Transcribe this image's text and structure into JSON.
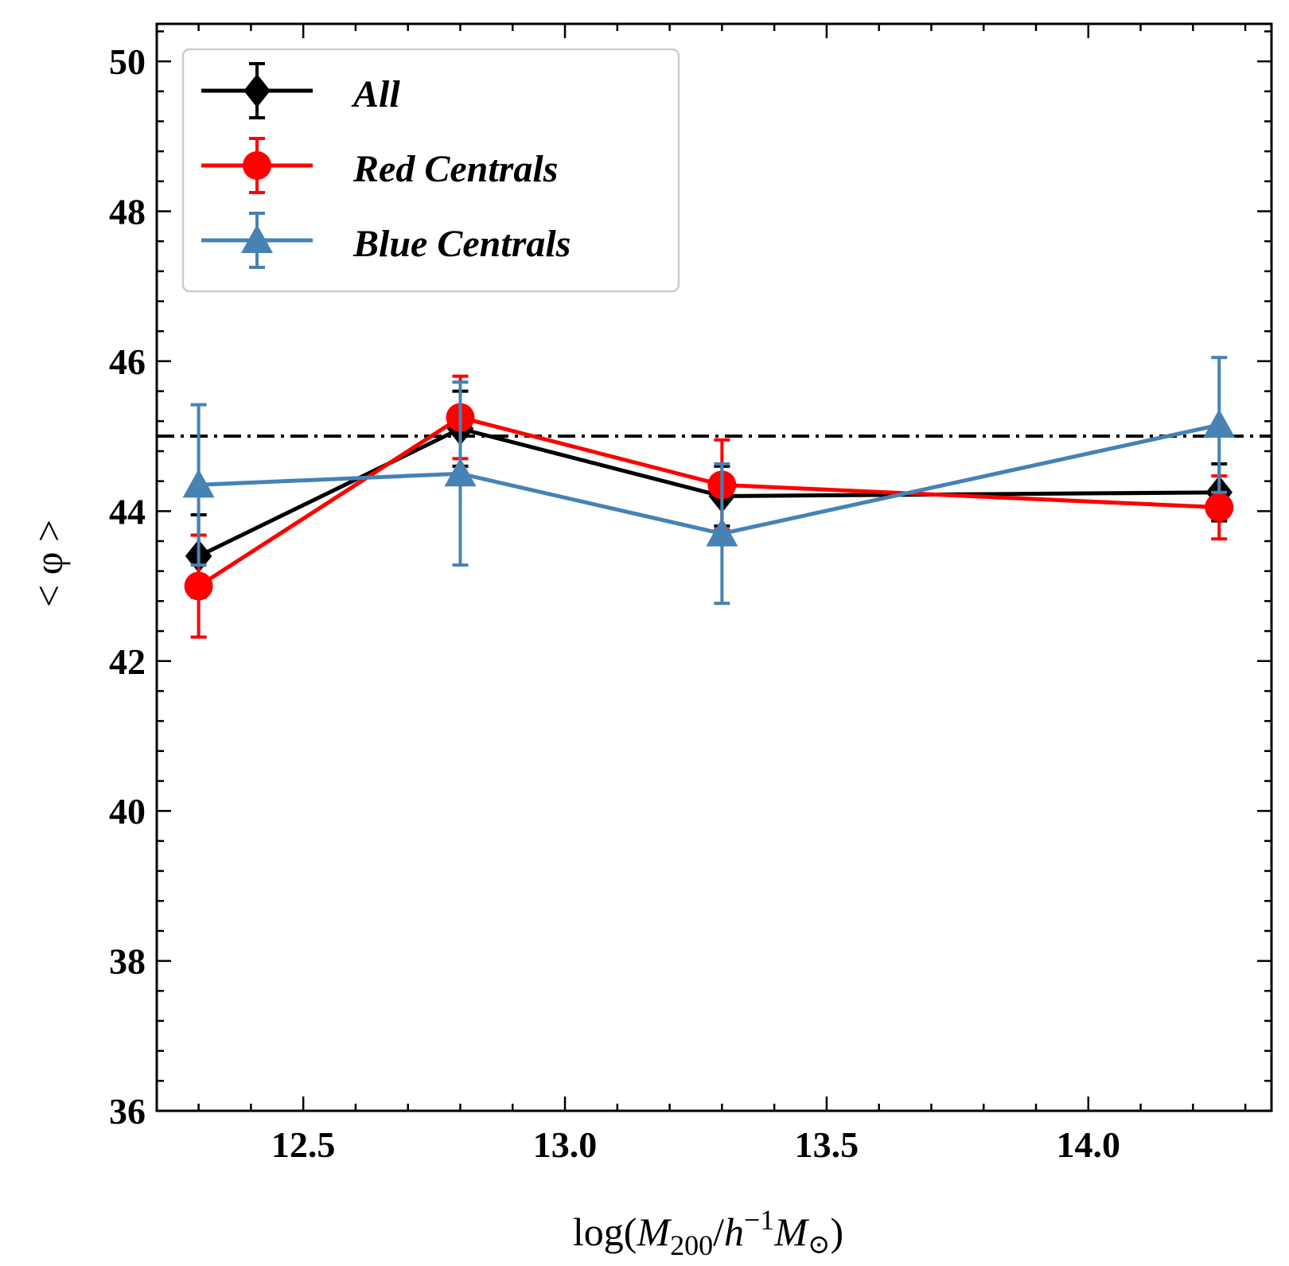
{
  "chart_data": {
    "type": "line",
    "title": "",
    "xlabel_parts": {
      "prefix": "log(",
      "m": "M",
      "sub200": "200",
      "slash": "/",
      "h": "h",
      "sup": "−1",
      "m2": "M",
      "odot": "⊙",
      "suffix": ")"
    },
    "ylabel": "< φ >",
    "xlim": [
      12.22,
      14.35
    ],
    "ylim": [
      36,
      50.5
    ],
    "x_ticks": [
      12.5,
      13.0,
      13.5,
      14.0
    ],
    "x_tick_labels": [
      "12.5",
      "13.0",
      "13.5",
      "14.0"
    ],
    "y_ticks": [
      36,
      38,
      40,
      42,
      44,
      46,
      48,
      50
    ],
    "y_tick_labels": [
      "36",
      "38",
      "40",
      "42",
      "44",
      "46",
      "48",
      "50"
    ],
    "reference_line": {
      "y": 45,
      "style": "dash-dot",
      "color": "#000000"
    },
    "legend_location": "top-left",
    "series": [
      {
        "name": "All",
        "color": "#000000",
        "marker": "diamond",
        "x": [
          12.3,
          12.8,
          13.3,
          14.25
        ],
        "y": [
          43.4,
          45.1,
          44.2,
          44.25
        ],
        "yerr": [
          0.55,
          0.5,
          0.4,
          0.38
        ]
      },
      {
        "name": "Red Centrals",
        "color": "#ff0000",
        "marker": "circle",
        "x": [
          12.3,
          12.8,
          13.3,
          14.25
        ],
        "y": [
          43.0,
          45.25,
          44.35,
          44.05
        ],
        "yerr": [
          0.68,
          0.55,
          0.6,
          0.42
        ]
      },
      {
        "name": "Blue Centrals",
        "color": "#4682b4",
        "marker": "triangle",
        "x": [
          12.3,
          12.8,
          13.3,
          14.25
        ],
        "y": [
          44.35,
          44.5,
          43.7,
          45.15
        ],
        "yerr": [
          1.07,
          1.22,
          0.93,
          0.9
        ]
      }
    ]
  }
}
